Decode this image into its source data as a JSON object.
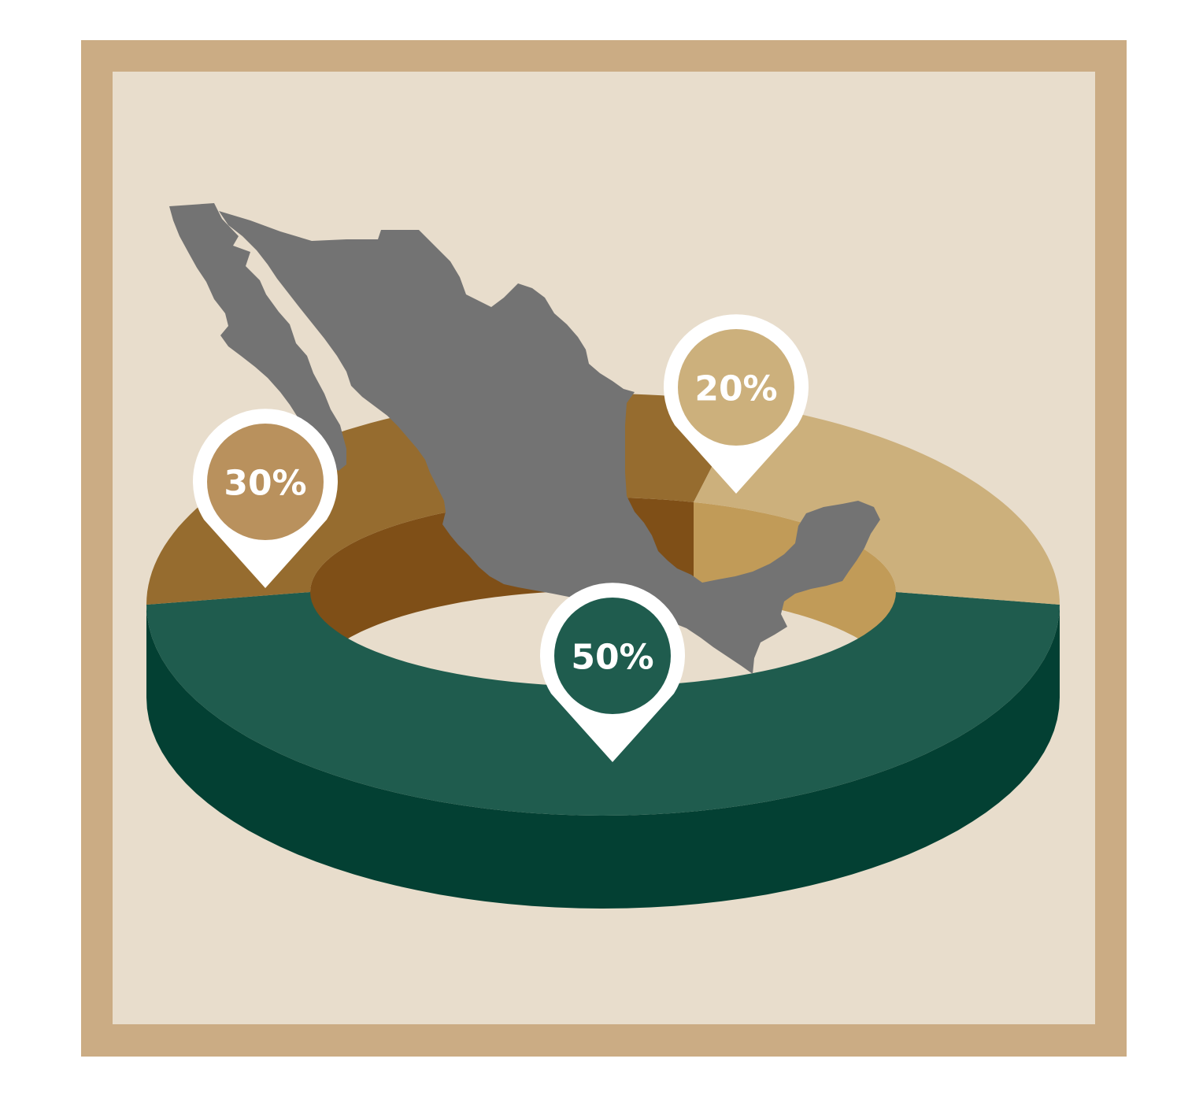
{
  "colors": {
    "frame_outer": "#cbac84",
    "frame_inner": "#e8ddcc",
    "map": "#737373",
    "pin_white": "#ffffff"
  },
  "icons": {
    "map_shape": "mexico-map-icon",
    "pin": "map-pin-icon"
  },
  "chart_data": {
    "type": "pie",
    "style": "3d-donut",
    "title": "",
    "series": [
      {
        "value": 50,
        "label": "50%",
        "top_color": "#1f5c4e",
        "side_color": "#034033",
        "inner_color": "#034033",
        "pin_color": "#1f5c4e"
      },
      {
        "value": 30,
        "label": "30%",
        "top_color": "#966c2f",
        "side_color": "#7f4f17",
        "inner_color": "#7f4f17",
        "pin_color": "#b9915d"
      },
      {
        "value": 20,
        "label": "20%",
        "top_color": "#ccb07c",
        "side_color": "#b69a5e",
        "inner_color": "#c19b58",
        "pin_color": "#ccb07c"
      }
    ]
  }
}
